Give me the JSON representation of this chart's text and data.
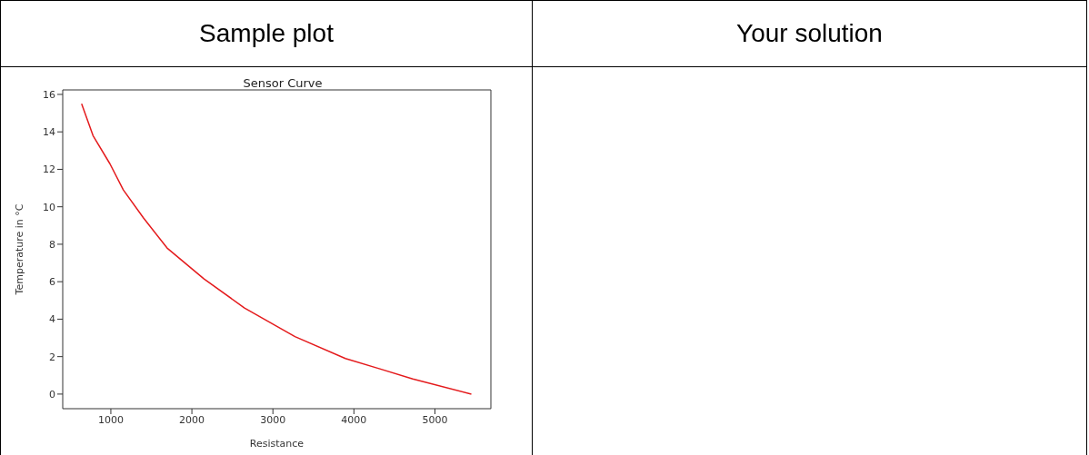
{
  "chart_data": {
    "type": "line",
    "title": "Sensor Curve",
    "xlabel": "Resistance",
    "ylabel": "Temperature in °C",
    "annotations": [
      "Sample plot",
      "Your solution"
    ],
    "x": [
      639,
      780,
      988,
      1154,
      1403,
      1694,
      2150,
      2649,
      3272,
      3895,
      4310,
      4726,
      5449
    ],
    "series": [
      {
        "color": "#e41a1c",
        "values": [
          15.5,
          13.8,
          12.3,
          10.9,
          9.4,
          7.8,
          6.15,
          4.6,
          3.07,
          1.9,
          1.36,
          0.81,
          0
        ]
      }
    ],
    "xlim": [
      406,
      5690
    ],
    "xticks": [
      1000,
      2000,
      3000,
      4000,
      5000
    ],
    "ylim": [
      -0.78,
      16.24
    ],
    "yticks": [
      0,
      2,
      4,
      6,
      8,
      10,
      12,
      14,
      16
    ],
    "grid": false,
    "legend": false,
    "marker": "none",
    "line_style": "solid"
  }
}
